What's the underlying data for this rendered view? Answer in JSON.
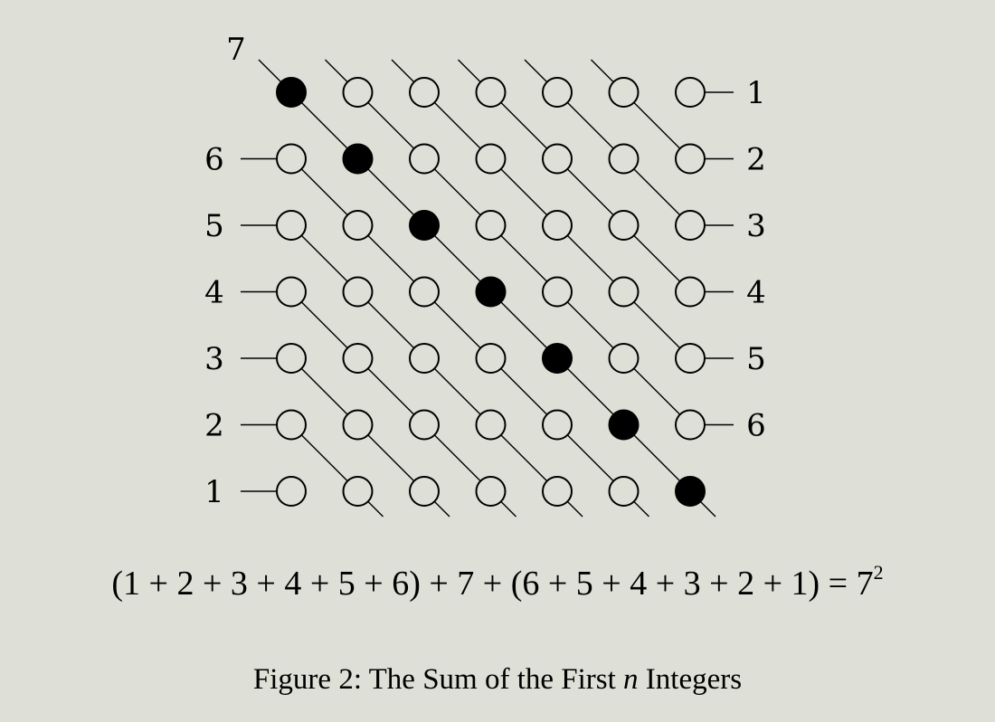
{
  "figure": {
    "grid_size": 7,
    "filled_color": "#000000",
    "background_color": "#dedfd6",
    "top_label": "7",
    "left_labels": [
      "6",
      "5",
      "4",
      "3",
      "2",
      "1"
    ],
    "right_labels": [
      "1",
      "2",
      "3",
      "4",
      "5",
      "6"
    ]
  },
  "equation": {
    "text": "(1 + 2 + 3 + 4 + 5 + 6) + 7 + (6 + 5 + 4 + 3 + 2 + 1) = 7",
    "exponent": "2"
  },
  "caption": {
    "prefix": "Figure 2: The Sum of the First ",
    "variable": "n",
    "suffix": " Integers"
  }
}
